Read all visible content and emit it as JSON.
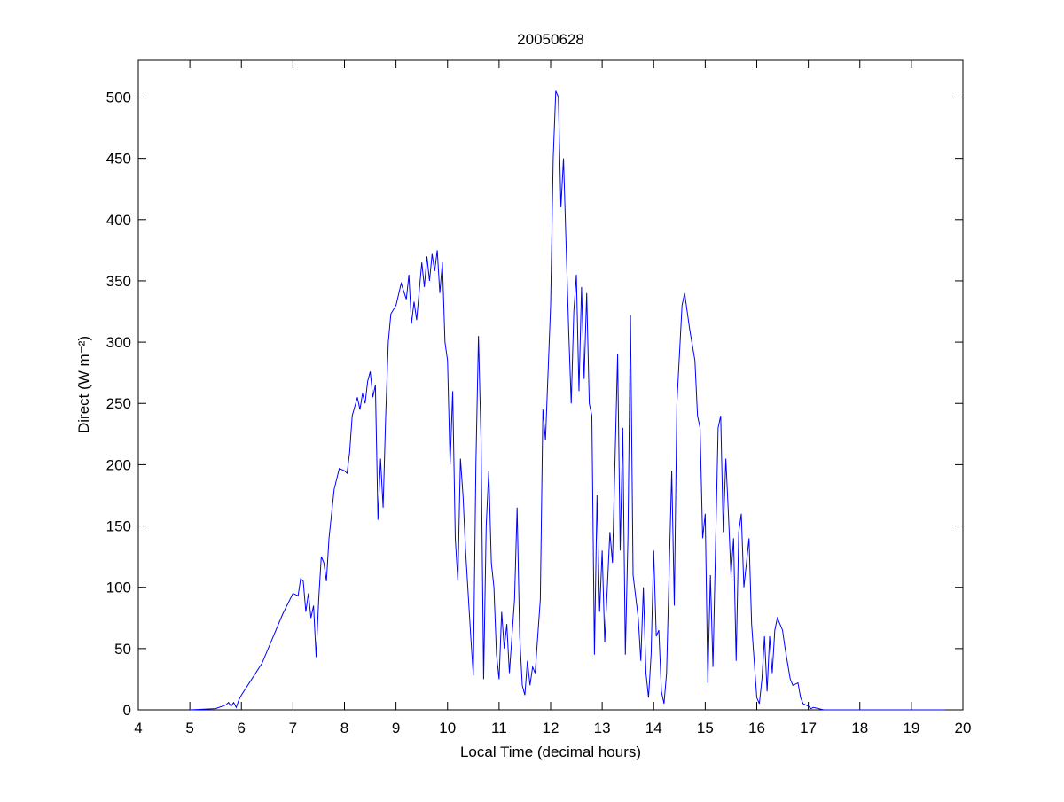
{
  "chart_data": {
    "type": "line",
    "title": "20050628",
    "x_label": "Local Time (decimal hours)",
    "y_label": "Direct (W m⁻²)",
    "xlim": [
      4,
      20
    ],
    "xticks": [
      4,
      5,
      6,
      7,
      8,
      9,
      10,
      11,
      12,
      13,
      14,
      15,
      16,
      17,
      18,
      19,
      20
    ],
    "ylim": [
      0,
      530
    ],
    "yticks": [
      0,
      50,
      100,
      150,
      200,
      250,
      300,
      350,
      400,
      450,
      500
    ],
    "grid": false,
    "series": [
      {
        "color": "#0000ff",
        "x": [
          5.0,
          5.5,
          5.7,
          5.75,
          5.8,
          5.85,
          5.9,
          5.95,
          6.0,
          6.2,
          6.4,
          6.6,
          6.8,
          7.0,
          7.1,
          7.15,
          7.2,
          7.25,
          7.3,
          7.35,
          7.4,
          7.45,
          7.5,
          7.55,
          7.6,
          7.65,
          7.7,
          7.8,
          7.9,
          8.0,
          8.05,
          8.1,
          8.15,
          8.25,
          8.3,
          8.35,
          8.4,
          8.45,
          8.5,
          8.55,
          8.6,
          8.65,
          8.7,
          8.75,
          8.8,
          8.85,
          8.9,
          9.0,
          9.1,
          9.2,
          9.25,
          9.3,
          9.35,
          9.4,
          9.5,
          9.55,
          9.6,
          9.65,
          9.7,
          9.75,
          9.8,
          9.85,
          9.9,
          9.95,
          10.0,
          10.05,
          10.1,
          10.15,
          10.2,
          10.25,
          10.3,
          10.35,
          10.45,
          10.5,
          10.55,
          10.6,
          10.65,
          10.7,
          10.75,
          10.8,
          10.85,
          10.9,
          10.95,
          11.0,
          11.05,
          11.1,
          11.15,
          11.2,
          11.3,
          11.35,
          11.4,
          11.45,
          11.5,
          11.55,
          11.6,
          11.65,
          11.7,
          11.8,
          11.85,
          11.9,
          12.0,
          12.05,
          12.1,
          12.15,
          12.2,
          12.25,
          12.3,
          12.35,
          12.4,
          12.45,
          12.5,
          12.55,
          12.6,
          12.65,
          12.7,
          12.75,
          12.8,
          12.85,
          12.9,
          12.95,
          13.0,
          13.05,
          13.15,
          13.2,
          13.3,
          13.35,
          13.4,
          13.45,
          13.5,
          13.55,
          13.6,
          13.7,
          13.75,
          13.8,
          13.85,
          13.9,
          13.95,
          14.0,
          14.05,
          14.1,
          14.15,
          14.2,
          14.25,
          14.35,
          14.4,
          14.45,
          14.55,
          14.6,
          14.7,
          14.8,
          14.85,
          14.9,
          14.95,
          15.0,
          15.05,
          15.1,
          15.15,
          15.25,
          15.3,
          15.35,
          15.4,
          15.45,
          15.5,
          15.55,
          15.6,
          15.65,
          15.7,
          15.75,
          15.85,
          15.9,
          15.95,
          16.0,
          16.05,
          16.1,
          16.15,
          16.2,
          16.25,
          16.3,
          16.35,
          16.4,
          16.5,
          16.55,
          16.65,
          16.7,
          16.8,
          16.85,
          16.9,
          17.0,
          17.05,
          17.1,
          17.3,
          19.65
        ],
        "values": [
          0,
          1,
          4,
          6,
          3,
          6,
          2,
          8,
          12,
          25,
          38,
          58,
          78,
          95,
          93,
          107,
          105,
          80,
          95,
          75,
          85,
          43,
          90,
          125,
          120,
          105,
          140,
          180,
          197,
          195,
          193,
          210,
          240,
          255,
          245,
          258,
          250,
          268,
          276,
          255,
          265,
          155,
          205,
          165,
          240,
          300,
          323,
          330,
          348,
          335,
          355,
          315,
          333,
          318,
          365,
          345,
          370,
          350,
          372,
          358,
          375,
          340,
          365,
          300,
          285,
          200,
          260,
          140,
          105,
          205,
          175,
          130,
          60,
          28,
          200,
          305,
          220,
          25,
          150,
          195,
          120,
          100,
          45,
          25,
          80,
          50,
          70,
          30,
          90,
          165,
          60,
          20,
          12,
          40,
          20,
          35,
          30,
          90,
          245,
          220,
          330,
          450,
          505,
          500,
          410,
          450,
          380,
          310,
          250,
          325,
          355,
          260,
          345,
          270,
          340,
          250,
          240,
          45,
          175,
          80,
          130,
          55,
          145,
          120,
          290,
          130,
          230,
          45,
          140,
          322,
          110,
          75,
          40,
          100,
          30,
          10,
          45,
          130,
          60,
          65,
          15,
          5,
          30,
          195,
          85,
          250,
          330,
          340,
          310,
          285,
          240,
          230,
          140,
          160,
          22,
          110,
          35,
          230,
          240,
          145,
          205,
          160,
          110,
          140,
          40,
          145,
          160,
          100,
          140,
          70,
          40,
          10,
          5,
          25,
          60,
          15,
          60,
          30,
          65,
          75,
          65,
          50,
          25,
          20,
          22,
          10,
          5,
          3,
          1,
          2,
          0,
          0
        ]
      }
    ]
  }
}
